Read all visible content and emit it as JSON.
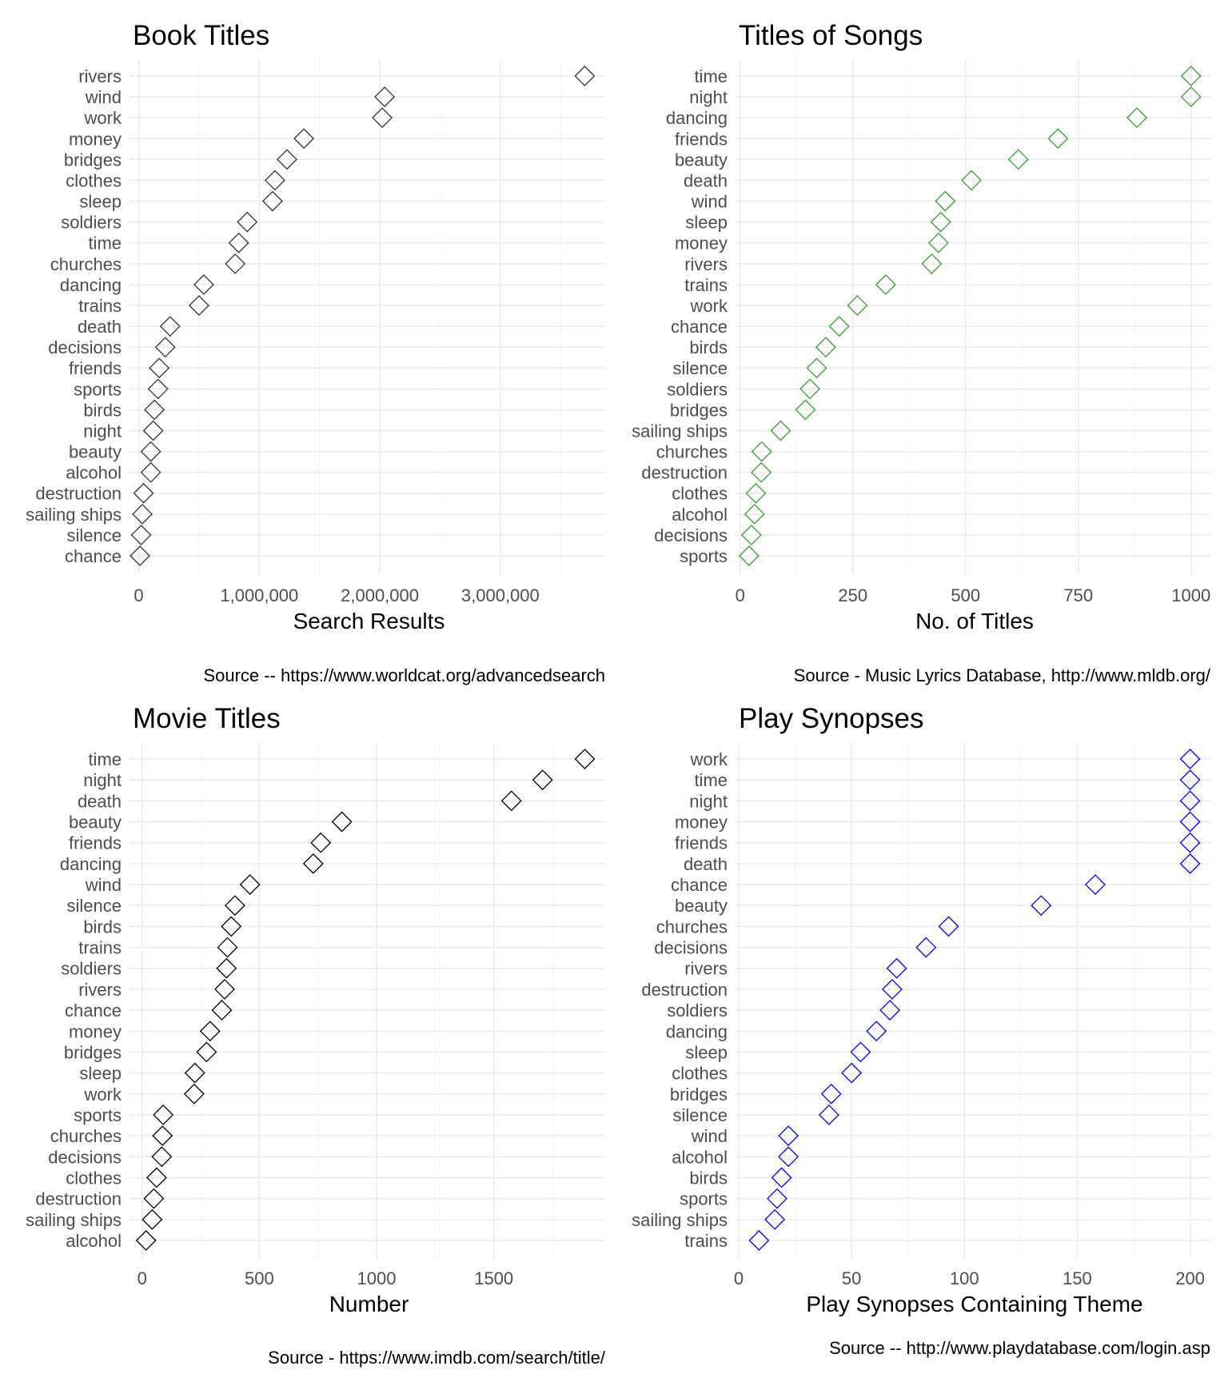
{
  "chart_data": [
    {
      "type": "scatter",
      "title": "Book Titles",
      "xlabel": "Search Results",
      "caption": "Source -- https://www.worldcat.org/advancedsearch",
      "marker": "diamond-open",
      "color": "#333333",
      "xlim": [
        -50000,
        3870000
      ],
      "xticks": [
        0,
        1000000,
        2000000,
        3000000
      ],
      "xtick_labels": [
        "0",
        "1,000,000",
        "2,000,000",
        "3,000,000"
      ],
      "categories": [
        "rivers",
        "wind",
        "work",
        "money",
        "bridges",
        "clothes",
        "sleep",
        "soldiers",
        "time",
        "churches",
        "dancing",
        "trains",
        "death",
        "decisions",
        "friends",
        "sports",
        "birds",
        "night",
        "beauty",
        "alcohol",
        "destruction",
        "sailing ships",
        "silence",
        "chance"
      ],
      "values": [
        3700000,
        2040000,
        2020000,
        1370000,
        1230000,
        1130000,
        1110000,
        900000,
        830000,
        800000,
        540000,
        500000,
        260000,
        220000,
        170000,
        160000,
        130000,
        120000,
        100000,
        100000,
        40000,
        30000,
        20000,
        10000
      ]
    },
    {
      "type": "scatter",
      "title": "Titles of Songs",
      "xlabel": "No. of Titles",
      "caption": "Source - Music Lyrics Database, http://www.mldb.org/",
      "marker": "diamond-open",
      "color": "#33a02c",
      "xlim": [
        -3,
        1043
      ],
      "xticks": [
        0,
        250,
        500,
        750,
        1000
      ],
      "xtick_labels": [
        "0",
        "250",
        "500",
        "750",
        "1000"
      ],
      "categories": [
        "time",
        "night",
        "dancing",
        "friends",
        "beauty",
        "death",
        "wind",
        "sleep",
        "money",
        "rivers",
        "trains",
        "work",
        "chance",
        "birds",
        "silence",
        "soldiers",
        "bridges",
        "sailing ships",
        "churches",
        "destruction",
        "clothes",
        "alcohol",
        "decisions",
        "sports"
      ],
      "values": [
        1000,
        1000,
        880,
        705,
        617,
        513,
        455,
        445,
        440,
        425,
        323,
        260,
        220,
        190,
        170,
        155,
        145,
        90,
        48,
        47,
        35,
        32,
        25,
        20
      ]
    },
    {
      "type": "scatter",
      "title": "Movie Titles",
      "xlabel": "Number",
      "caption": "Source - https://www.imdb.com/search/title/",
      "marker": "diamond-open",
      "color": "#000000",
      "xlim": [
        -40,
        1975
      ],
      "xticks": [
        0,
        500,
        1000,
        1500
      ],
      "xtick_labels": [
        "0",
        "500",
        "1000",
        "1500"
      ],
      "categories": [
        "time",
        "night",
        "death",
        "beauty",
        "friends",
        "dancing",
        "wind",
        "silence",
        "birds",
        "trains",
        "soldiers",
        "rivers",
        "chance",
        "money",
        "bridges",
        "sleep",
        "work",
        "sports",
        "churches",
        "decisions",
        "clothes",
        "destruction",
        "sailing ships",
        "alcohol"
      ],
      "values": [
        1888,
        1708,
        1575,
        852,
        762,
        730,
        460,
        396,
        380,
        364,
        360,
        352,
        340,
        290,
        275,
        225,
        222,
        90,
        87,
        84,
        62,
        50,
        43,
        17
      ]
    },
    {
      "type": "scatter",
      "title": "Play Synopses",
      "xlabel": "Play Synopses Containing Theme",
      "caption": "Source -- http://www.playdatabase.com/login.asp",
      "marker": "diamond-open",
      "color": "#0000ff",
      "xlim": [
        0,
        209
      ],
      "xticks": [
        0,
        50,
        100,
        150,
        200
      ],
      "xtick_labels": [
        "0",
        "50",
        "100",
        "150",
        "200"
      ],
      "categories": [
        "work",
        "time",
        "night",
        "money",
        "friends",
        "death",
        "chance",
        "beauty",
        "churches",
        "decisions",
        "rivers",
        "destruction",
        "soldiers",
        "dancing",
        "sleep",
        "clothes",
        "bridges",
        "silence",
        "wind",
        "alcohol",
        "birds",
        "sports",
        "sailing ships",
        "trains"
      ],
      "values": [
        200,
        200,
        200,
        200,
        200,
        200,
        158,
        134,
        93,
        83,
        70,
        68,
        67,
        61,
        54,
        50,
        41,
        40,
        22,
        22,
        19,
        17,
        16,
        9
      ]
    }
  ]
}
